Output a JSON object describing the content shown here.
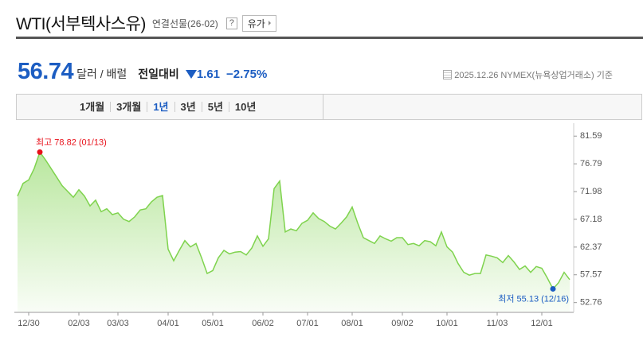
{
  "header": {
    "title": "WTI(서부텍사스유)",
    "subtitle": "연결선물(26-02)",
    "help": "?",
    "button": "유가"
  },
  "quote": {
    "price": "56.74",
    "unit": "달러 / 배럴",
    "change_label": "전일대비",
    "change": "1.61",
    "change_pct": "−2.75%",
    "note": "2025.12.26 NYMEX(뉴욕상업거래소) 기준"
  },
  "tabs": {
    "items": [
      "1개월",
      "3개월",
      "1년",
      "3년",
      "5년",
      "10년"
    ],
    "selected": 2
  },
  "chart_data": {
    "type": "area",
    "color": "#7fd34e",
    "categories": [
      null,
      null,
      "12/30",
      null,
      null,
      null,
      null,
      null,
      null,
      null,
      null,
      "02/03",
      null,
      null,
      null,
      null,
      null,
      null,
      "03/03",
      null,
      null,
      null,
      null,
      null,
      null,
      null,
      null,
      "04/01",
      null,
      null,
      null,
      null,
      null,
      null,
      null,
      "05/01",
      null,
      null,
      null,
      null,
      null,
      null,
      null,
      null,
      "06/02",
      null,
      null,
      null,
      null,
      null,
      null,
      null,
      "07/01",
      null,
      null,
      null,
      null,
      null,
      null,
      null,
      "08/01",
      null,
      null,
      null,
      null,
      null,
      null,
      null,
      null,
      "09/02",
      null,
      null,
      null,
      null,
      null,
      null,
      null,
      "10/01",
      null,
      null,
      null,
      null,
      null,
      null,
      null,
      null,
      "11/03",
      null,
      null,
      null,
      null,
      null,
      null,
      null,
      "12/01",
      null,
      null,
      null,
      null,
      null
    ],
    "values": [
      71.2,
      73.4,
      74.0,
      76.0,
      78.82,
      77.5,
      76.0,
      74.5,
      73.0,
      72.0,
      71.0,
      72.3,
      71.2,
      69.5,
      70.5,
      68.5,
      69.0,
      68.0,
      68.3,
      67.2,
      66.8,
      67.6,
      68.8,
      69.0,
      70.2,
      71.0,
      71.3,
      62.0,
      60.0,
      61.8,
      63.5,
      62.4,
      63.0,
      60.5,
      57.8,
      58.3,
      60.5,
      61.8,
      61.2,
      61.5,
      61.6,
      61.0,
      62.2,
      64.3,
      62.5,
      63.8,
      72.5,
      73.8,
      65.0,
      65.5,
      65.2,
      66.5,
      67.0,
      68.3,
      67.3,
      66.8,
      66.0,
      65.5,
      66.5,
      67.6,
      69.3,
      66.5,
      64.0,
      63.5,
      63.0,
      64.3,
      63.8,
      63.4,
      64.0,
      64.0,
      62.8,
      63.0,
      62.6,
      63.5,
      63.3,
      62.6,
      65.0,
      62.4,
      61.5,
      59.5,
      58.0,
      57.5,
      57.8,
      57.8,
      61.0,
      60.8,
      60.5,
      59.7,
      60.9,
      59.8,
      58.5,
      59.1,
      58.0,
      59.0,
      58.7,
      57.0,
      55.13,
      56.2,
      58.0,
      56.74
    ],
    "ylim": [
      51.2,
      83.0
    ],
    "yticks": [
      81.59,
      76.79,
      71.98,
      67.18,
      62.37,
      57.57,
      52.76
    ],
    "y_axis_side": "right",
    "annotations": [
      {
        "text": "최고 78.82 (01/13)",
        "color": "#e8101a",
        "at": "max"
      },
      {
        "text": "최저 55.13 (12/16)",
        "color": "#1c5dc2",
        "at": "min"
      }
    ]
  }
}
